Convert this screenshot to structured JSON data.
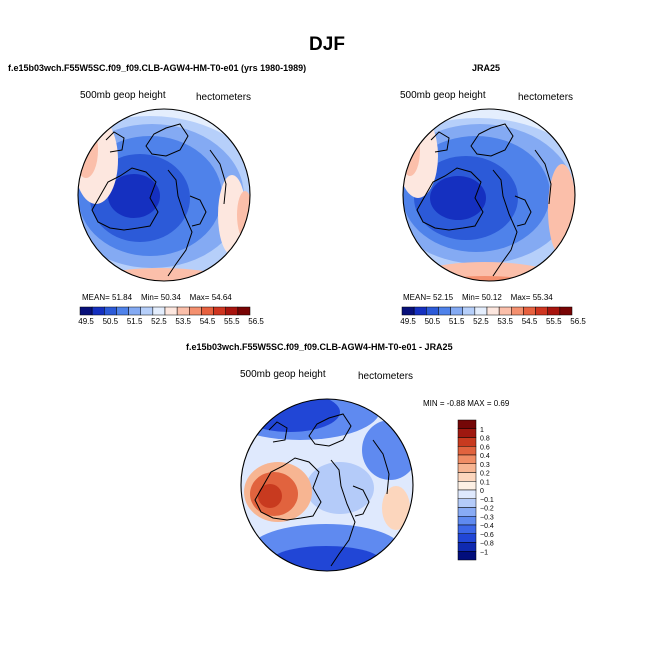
{
  "main_title": "DJF",
  "colors": {
    "abs_scale": [
      "#08107a",
      "#1530c0",
      "#2c5ad8",
      "#4f82ea",
      "#84aaf3",
      "#b6cffa",
      "#e4eefd",
      "#fde7df",
      "#fbbfaa",
      "#f4906f",
      "#e7613f",
      "#cf3520",
      "#a8140e",
      "#780404"
    ],
    "diff_scale": [
      "#020e7c",
      "#0f2ab0",
      "#2146d6",
      "#3c67e8",
      "#5f8af0",
      "#88abf5",
      "#b4cbf9",
      "#dfe9fd",
      "#fdf0e4",
      "#fcd6bd",
      "#f7b592",
      "#f08d65",
      "#e1633e",
      "#c83a1f",
      "#9f1810",
      "#750707"
    ]
  },
  "chart_data": [
    {
      "type": "heatmap",
      "name": "model",
      "title": "f.e15b03wch.F55W5SC.f09_f09.CLB-AGW4-HM-T0-e01 (yrs 1980-1989)",
      "left_label": "500mb geop height",
      "right_label": "hectometers",
      "stats": {
        "mean_label": "MEAN=",
        "mean": "51.84",
        "min_label": "Min=",
        "min": "50.34",
        "max_label": "Max=",
        "max": "54.64"
      },
      "levels": [
        49.5,
        50.0,
        50.5,
        51.0,
        51.5,
        52.0,
        52.5,
        53.0,
        53.5,
        54.0,
        54.5,
        55.0,
        55.5,
        56.0,
        56.5
      ],
      "tick_labels": [
        "49.5",
        "50.5",
        "51.5",
        "52.5",
        "53.5",
        "54.5",
        "55.5",
        "56.5"
      ]
    },
    {
      "type": "heatmap",
      "name": "obs",
      "title": "JRA25",
      "left_label": "500mb geop height",
      "right_label": "hectometers",
      "stats": {
        "mean_label": "MEAN=",
        "mean": "52.15",
        "min_label": "Min=",
        "min": "50.12",
        "max_label": "Max=",
        "max": "55.34"
      },
      "levels": [
        49.5,
        50.0,
        50.5,
        51.0,
        51.5,
        52.0,
        52.5,
        53.0,
        53.5,
        54.0,
        54.5,
        55.0,
        55.5,
        56.0,
        56.5
      ],
      "tick_labels": [
        "49.5",
        "50.5",
        "51.5",
        "52.5",
        "53.5",
        "54.5",
        "55.5",
        "56.5"
      ]
    },
    {
      "type": "heatmap",
      "name": "difference",
      "title": "f.e15b03wch.F55W5SC.f09_f09.CLB-AGW4-HM-T0-e01 - JRA25",
      "left_label": "500mb geop height",
      "right_label": "hectometers",
      "stats": {
        "min_label": "MIN =",
        "min": "-0.88",
        "max_label": "MAX =",
        "max": "0.69"
      },
      "levels": [
        -1,
        -0.8,
        -0.6,
        -0.4,
        -0.3,
        -0.2,
        -0.1,
        0,
        0.1,
        0.2,
        0.3,
        0.4,
        0.6,
        0.8,
        1
      ],
      "tick_labels": [
        "1",
        "0.8",
        "0.6",
        "0.4",
        "0.3",
        "0.2",
        "0.1",
        "0",
        "−0.1",
        "−0.2",
        "−0.3",
        "−0.4",
        "−0.6",
        "−0.8",
        "−1"
      ]
    }
  ]
}
